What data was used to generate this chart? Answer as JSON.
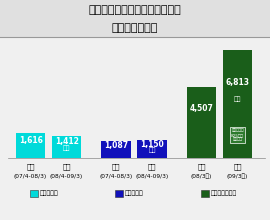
{
  "title_line1": "連結：減価償却費、研究開発費",
  "title_line2": "有利子負債残高",
  "groups": [
    {
      "label_top": "前期",
      "label_bot": "(07/4-08/3)",
      "value": 1616,
      "color": "#00dada",
      "series": 0,
      "show_oku": false
    },
    {
      "label_top": "当期",
      "label_bot": "(08/4-09/3)",
      "value": 1412,
      "color": "#00dada",
      "series": 0,
      "show_oku": true
    },
    {
      "label_top": "前期",
      "label_bot": "(07/4-08/3)",
      "value": 1087,
      "color": "#1111bb",
      "series": 1,
      "show_oku": false
    },
    {
      "label_top": "当期",
      "label_bot": "(08/4-09/3)",
      "value": 1150,
      "color": "#1111bb",
      "series": 1,
      "show_oku": true
    },
    {
      "label_top": "前期",
      "label_bot": "(08/3東)",
      "value": 4507,
      "color": "#1a5e1a",
      "series": 2,
      "show_oku": false
    },
    {
      "label_top": "当期",
      "label_bot": "(09/3東)",
      "value": 6813,
      "color": "#1a5e1a",
      "series": 2,
      "show_oku": true,
      "annotation": "金融事業分\n825億円\n含まない"
    }
  ],
  "legend_items": [
    {
      "label": "減価償却費",
      "color": "#00dada"
    },
    {
      "label": "研究開発費",
      "color": "#1111bb"
    },
    {
      "label": "有利子負債残高",
      "color": "#1a5e1a"
    }
  ],
  "ymax": 7500,
  "bg_color": "#f0f0f0",
  "title_bg": "#e8e8e8",
  "bar_positions": [
    0.3,
    1.1,
    2.2,
    3.0,
    4.1,
    4.9
  ],
  "bar_width": 0.65,
  "title_fontsize": 8,
  "label_fontsize": 5,
  "value_fontsize": 5.5,
  "legend_fontsize": 4.5
}
